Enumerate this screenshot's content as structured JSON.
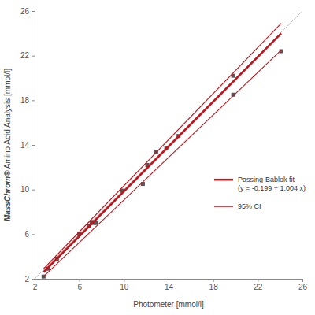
{
  "chart_data": {
    "type": "scatter",
    "x_label": "Photometer [mmol/l]",
    "y_label": "MassChrom® Amino Acid Analysis [mmol/l]",
    "xlim": [
      2,
      26
    ],
    "ylim": [
      2,
      26
    ],
    "xticks": [
      2,
      6,
      10,
      14,
      18,
      22,
      26
    ],
    "yticks": [
      2,
      6,
      10,
      14,
      18,
      22,
      26
    ],
    "grid": false,
    "legend": "right",
    "series": [
      {
        "type": "line",
        "color": "#c4c4c4",
        "line_style": "solid",
        "x": [
          2,
          26
        ],
        "values": [
          2,
          26
        ]
      },
      {
        "type": "scatter",
        "color": "#555555",
        "marker": "square",
        "x": [
          2.8,
          3.2,
          4.0,
          6.0,
          6.9,
          7.1,
          7.3,
          7.5,
          9.8,
          11.7,
          12.1,
          12.9,
          13.8,
          14.9,
          19.8,
          19.8,
          24.1
        ],
        "values": [
          2.2,
          2.9,
          3.8,
          6.0,
          6.7,
          7.1,
          7.0,
          7.0,
          9.9,
          10.5,
          12.2,
          13.4,
          13.7,
          14.8,
          20.2,
          18.5,
          22.4
        ]
      },
      {
        "type": "line",
        "name": "Passing-Bablok fit\n(y = -0,199 + 1,004 x)",
        "color": "#c0141c",
        "line_style": "thick",
        "x": [
          2.8,
          24.1
        ],
        "values": [
          2.6,
          24.0
        ]
      },
      {
        "type": "line",
        "name": "95% CI",
        "color": "#c0141c",
        "line_style": "thin",
        "x": [
          2.8,
          24.1
        ],
        "values": [
          2.9,
          24.9
        ]
      },
      {
        "type": "line",
        "name": "95% CI",
        "color": "#c0141c",
        "line_style": "thin",
        "x": [
          2.8,
          24.1
        ],
        "values": [
          2.2,
          22.5
        ]
      }
    ]
  }
}
